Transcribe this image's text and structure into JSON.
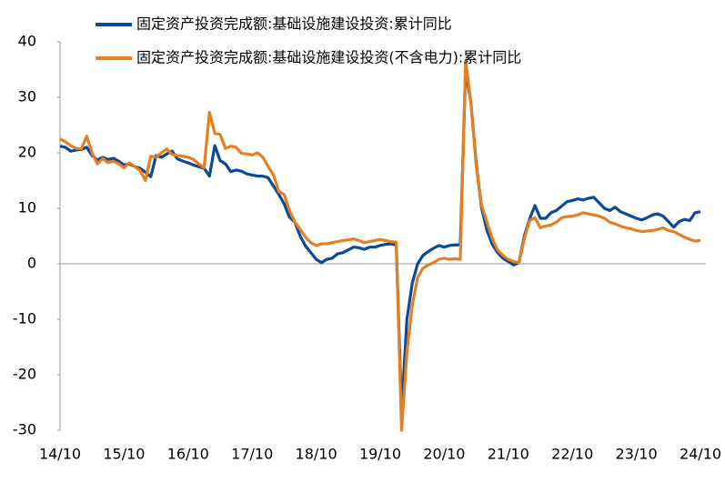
{
  "chart_data": {
    "type": "line",
    "categories": [
      "14/10",
      null,
      null,
      null,
      null,
      null,
      null,
      null,
      null,
      null,
      null,
      null,
      "15/10",
      null,
      null,
      null,
      null,
      null,
      null,
      null,
      null,
      null,
      null,
      null,
      "16/10",
      null,
      null,
      null,
      null,
      null,
      null,
      null,
      null,
      null,
      null,
      null,
      "17/10",
      null,
      null,
      null,
      null,
      null,
      null,
      null,
      null,
      null,
      null,
      null,
      "18/10",
      null,
      null,
      null,
      null,
      null,
      null,
      null,
      null,
      null,
      null,
      null,
      "19/10",
      null,
      null,
      null,
      null,
      null,
      null,
      null,
      null,
      null,
      null,
      null,
      "20/10",
      null,
      null,
      null,
      null,
      null,
      null,
      null,
      null,
      null,
      null,
      null,
      "21/10",
      null,
      null,
      null,
      null,
      null,
      null,
      null,
      null,
      null,
      null,
      null,
      "22/10",
      null,
      null,
      null,
      null,
      null,
      null,
      null,
      null,
      null,
      null,
      null,
      "23/10",
      null,
      null,
      null,
      null,
      null,
      null,
      null,
      null,
      null,
      null,
      null,
      "24/10"
    ],
    "series": [
      {
        "name": "固定资产投资完成额:基础设施建设投资:累计同比",
        "color": "#0a4a97",
        "values": [
          21.2,
          21.0,
          20.3,
          20.5,
          20.6,
          21.0,
          19.5,
          18.7,
          19.2,
          18.8,
          19.0,
          18.5,
          17.8,
          18.0,
          17.5,
          17.2,
          16.5,
          15.7,
          19.5,
          19.2,
          19.8,
          20.3,
          18.9,
          18.5,
          18.2,
          17.8,
          17.5,
          17.2,
          15.8,
          21.3,
          18.6,
          18.0,
          16.6,
          16.9,
          16.7,
          16.2,
          16.0,
          15.8,
          15.8,
          15.5,
          14.0,
          12.5,
          10.8,
          8.4,
          7.5,
          5.0,
          3.2,
          2.0,
          0.8,
          0.2,
          0.8,
          1.0,
          1.8,
          2.0,
          2.5,
          3.0,
          2.9,
          2.6,
          3.0,
          3.0,
          3.3,
          3.5,
          3.6,
          3.4,
          -26.5,
          -10.0,
          -3.5,
          0.0,
          1.5,
          2.2,
          2.8,
          3.3,
          3.0,
          3.3,
          3.4,
          3.4,
          35.0,
          29.0,
          18.0,
          10.0,
          6.0,
          3.5,
          2.0,
          1.0,
          0.4,
          -0.2,
          0.2,
          5.0,
          8.1,
          10.5,
          8.2,
          8.2,
          9.2,
          9.6,
          10.4,
          11.2,
          11.4,
          11.7,
          11.5,
          11.8,
          12.0,
          11.0,
          10.0,
          9.6,
          10.2,
          9.4,
          9.0,
          8.6,
          8.2,
          7.9,
          8.3,
          8.8,
          9.0,
          8.6,
          7.6,
          6.6,
          7.6,
          8.0,
          7.8,
          9.2,
          9.4
        ]
      },
      {
        "name": "固定资产投资完成额:基础设施建设投资(不含电力):累计同比",
        "color": "#e67e22",
        "values": [
          22.5,
          22.0,
          21.3,
          20.8,
          20.7,
          23.0,
          20.0,
          18.0,
          19.0,
          18.2,
          18.5,
          18.0,
          17.3,
          18.2,
          17.5,
          16.8,
          15.0,
          19.4,
          19.2,
          20.0,
          20.7,
          19.7,
          19.5,
          19.4,
          19.2,
          18.8,
          18.0,
          17.3,
          27.3,
          23.5,
          23.3,
          20.8,
          21.2,
          21.0,
          19.9,
          19.8,
          19.6,
          20.0,
          19.2,
          17.5,
          16.0,
          13.0,
          12.5,
          9.6,
          7.5,
          6.2,
          4.8,
          3.8,
          3.3,
          3.6,
          3.6,
          3.8,
          4.0,
          4.2,
          4.3,
          4.5,
          4.2,
          3.8,
          4.0,
          4.2,
          4.4,
          4.2,
          4.0,
          3.9,
          -30.0,
          -16.0,
          -7.5,
          -2.5,
          -0.8,
          -0.2,
          0.2,
          0.8,
          1.0,
          0.8,
          0.9,
          0.8,
          36.5,
          29.0,
          17.5,
          10.5,
          7.5,
          4.5,
          2.5,
          1.5,
          0.8,
          0.4,
          0.2,
          4.5,
          7.8,
          8.3,
          6.5,
          6.8,
          7.0,
          7.5,
          8.3,
          8.5,
          8.6,
          8.8,
          9.2,
          9.0,
          8.8,
          8.6,
          8.2,
          7.5,
          7.2,
          6.8,
          6.5,
          6.3,
          6.0,
          5.8,
          5.9,
          6.0,
          6.2,
          6.5,
          6.0,
          5.8,
          5.3,
          4.8,
          4.4,
          4.1,
          4.2
        ]
      }
    ],
    "ylim": [
      -30,
      40
    ],
    "yticks": [
      -30,
      -20,
      -10,
      0,
      10,
      20,
      30,
      40
    ]
  }
}
